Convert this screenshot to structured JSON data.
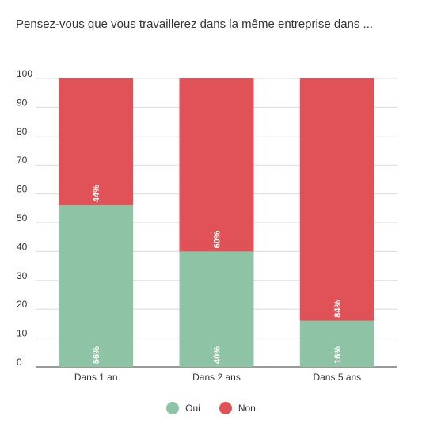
{
  "chart_data": {
    "type": "bar",
    "stacked": true,
    "title": "Pensez-vous que vous travaillerez dans la même entreprise dans ...",
    "categories": [
      "Dans 1 an",
      "Dans 2 ans",
      "Dans 5 ans"
    ],
    "series": [
      {
        "name": "Oui",
        "color": "#8fc3a6",
        "values": [
          56,
          40,
          16
        ],
        "labels": [
          "56%",
          "40%",
          "16%"
        ]
      },
      {
        "name": "Non",
        "color": "#e05257",
        "values": [
          44,
          60,
          84
        ],
        "labels": [
          "44%",
          "60%",
          "84%"
        ]
      }
    ],
    "ylim": [
      0,
      100
    ],
    "yticks": [
      "0",
      "10",
      "20",
      "30",
      "40",
      "50",
      "60",
      "70",
      "80",
      "90",
      "100"
    ],
    "grid": true,
    "legend": "bottom"
  }
}
